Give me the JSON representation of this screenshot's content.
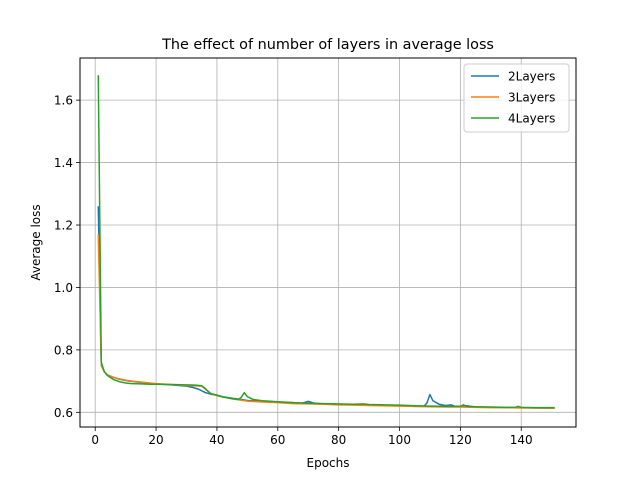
{
  "chart_data": {
    "type": "line",
    "title": "The effect of number of layers in average loss",
    "xlabel": "Epochs",
    "ylabel": "Average loss",
    "xlim": [
      -5,
      158
    ],
    "ylim": [
      0.553,
      1.735
    ],
    "xticks": [
      0,
      20,
      40,
      60,
      80,
      100,
      120,
      140
    ],
    "yticks": [
      0.6,
      0.8,
      1.0,
      1.2,
      1.4,
      1.6
    ],
    "ytick_labels": [
      "0.6",
      "0.8",
      "1.0",
      "1.2",
      "1.4",
      "1.6"
    ],
    "grid": true,
    "legend_position": "upper right",
    "series": [
      {
        "name": "2Layers",
        "color": "#1f77b4",
        "points": [
          [
            1,
            1.26
          ],
          [
            2,
            0.75
          ],
          [
            3,
            0.73
          ],
          [
            4,
            0.72
          ],
          [
            6,
            0.712
          ],
          [
            8,
            0.706
          ],
          [
            10,
            0.702
          ],
          [
            12,
            0.699
          ],
          [
            15,
            0.696
          ],
          [
            18,
            0.693
          ],
          [
            20,
            0.691
          ],
          [
            25,
            0.688
          ],
          [
            30,
            0.684
          ],
          [
            32,
            0.68
          ],
          [
            34,
            0.674
          ],
          [
            36,
            0.664
          ],
          [
            38,
            0.658
          ],
          [
            40,
            0.655
          ],
          [
            42,
            0.65
          ],
          [
            45,
            0.645
          ],
          [
            48,
            0.641
          ],
          [
            50,
            0.638
          ],
          [
            55,
            0.636
          ],
          [
            60,
            0.633
          ],
          [
            65,
            0.631
          ],
          [
            68,
            0.629
          ],
          [
            70,
            0.635
          ],
          [
            72,
            0.629
          ],
          [
            75,
            0.627
          ],
          [
            80,
            0.626
          ],
          [
            85,
            0.625
          ],
          [
            88,
            0.624
          ],
          [
            90,
            0.623
          ],
          [
            95,
            0.622
          ],
          [
            100,
            0.621
          ],
          [
            105,
            0.619
          ],
          [
            108,
            0.619
          ],
          [
            109,
            0.63
          ],
          [
            110,
            0.657
          ],
          [
            111,
            0.637
          ],
          [
            113,
            0.626
          ],
          [
            115,
            0.622
          ],
          [
            117,
            0.624
          ],
          [
            118,
            0.62
          ],
          [
            120,
            0.619
          ],
          [
            122,
            0.621
          ],
          [
            125,
            0.617
          ],
          [
            130,
            0.616
          ],
          [
            135,
            0.615
          ],
          [
            140,
            0.615
          ],
          [
            145,
            0.614
          ],
          [
            151,
            0.613
          ]
        ]
      },
      {
        "name": "3Layers",
        "color": "#ff7f0e",
        "points": [
          [
            1,
            1.17
          ],
          [
            2,
            0.75
          ],
          [
            3,
            0.73
          ],
          [
            4,
            0.72
          ],
          [
            6,
            0.712
          ],
          [
            8,
            0.707
          ],
          [
            10,
            0.703
          ],
          [
            12,
            0.7
          ],
          [
            15,
            0.697
          ],
          [
            18,
            0.694
          ],
          [
            20,
            0.692
          ],
          [
            25,
            0.689
          ],
          [
            30,
            0.686
          ],
          [
            35,
            0.684
          ],
          [
            38,
            0.66
          ],
          [
            40,
            0.653
          ],
          [
            45,
            0.643
          ],
          [
            50,
            0.636
          ],
          [
            55,
            0.633
          ],
          [
            60,
            0.631
          ],
          [
            65,
            0.628
          ],
          [
            70,
            0.627
          ],
          [
            75,
            0.626
          ],
          [
            80,
            0.624
          ],
          [
            85,
            0.623
          ],
          [
            90,
            0.622
          ],
          [
            95,
            0.621
          ],
          [
            100,
            0.62
          ],
          [
            105,
            0.619
          ],
          [
            110,
            0.618
          ],
          [
            115,
            0.617
          ],
          [
            120,
            0.617
          ],
          [
            125,
            0.616
          ],
          [
            130,
            0.615
          ],
          [
            135,
            0.615
          ],
          [
            140,
            0.614
          ],
          [
            145,
            0.614
          ],
          [
            151,
            0.613
          ]
        ]
      },
      {
        "name": "4Layers",
        "color": "#2ca02c",
        "points": [
          [
            1,
            1.68
          ],
          [
            2,
            0.76
          ],
          [
            3,
            0.73
          ],
          [
            4,
            0.718
          ],
          [
            6,
            0.705
          ],
          [
            8,
            0.698
          ],
          [
            10,
            0.694
          ],
          [
            12,
            0.692
          ],
          [
            15,
            0.691
          ],
          [
            18,
            0.69
          ],
          [
            20,
            0.69
          ],
          [
            25,
            0.689
          ],
          [
            30,
            0.688
          ],
          [
            33,
            0.687
          ],
          [
            35,
            0.685
          ],
          [
            36,
            0.678
          ],
          [
            37,
            0.668
          ],
          [
            38,
            0.66
          ],
          [
            40,
            0.655
          ],
          [
            42,
            0.649
          ],
          [
            45,
            0.644
          ],
          [
            47,
            0.641
          ],
          [
            48,
            0.648
          ],
          [
            49,
            0.663
          ],
          [
            50,
            0.65
          ],
          [
            52,
            0.641
          ],
          [
            55,
            0.637
          ],
          [
            60,
            0.634
          ],
          [
            65,
            0.631
          ],
          [
            70,
            0.629
          ],
          [
            75,
            0.628
          ],
          [
            80,
            0.627
          ],
          [
            85,
            0.626
          ],
          [
            88,
            0.627
          ],
          [
            90,
            0.625
          ],
          [
            95,
            0.624
          ],
          [
            100,
            0.623
          ],
          [
            105,
            0.621
          ],
          [
            110,
            0.62
          ],
          [
            115,
            0.619
          ],
          [
            120,
            0.619
          ],
          [
            121,
            0.624
          ],
          [
            122,
            0.619
          ],
          [
            125,
            0.618
          ],
          [
            130,
            0.617
          ],
          [
            135,
            0.616
          ],
          [
            138,
            0.616
          ],
          [
            139,
            0.619
          ],
          [
            140,
            0.616
          ],
          [
            145,
            0.615
          ],
          [
            151,
            0.615
          ]
        ]
      }
    ]
  }
}
